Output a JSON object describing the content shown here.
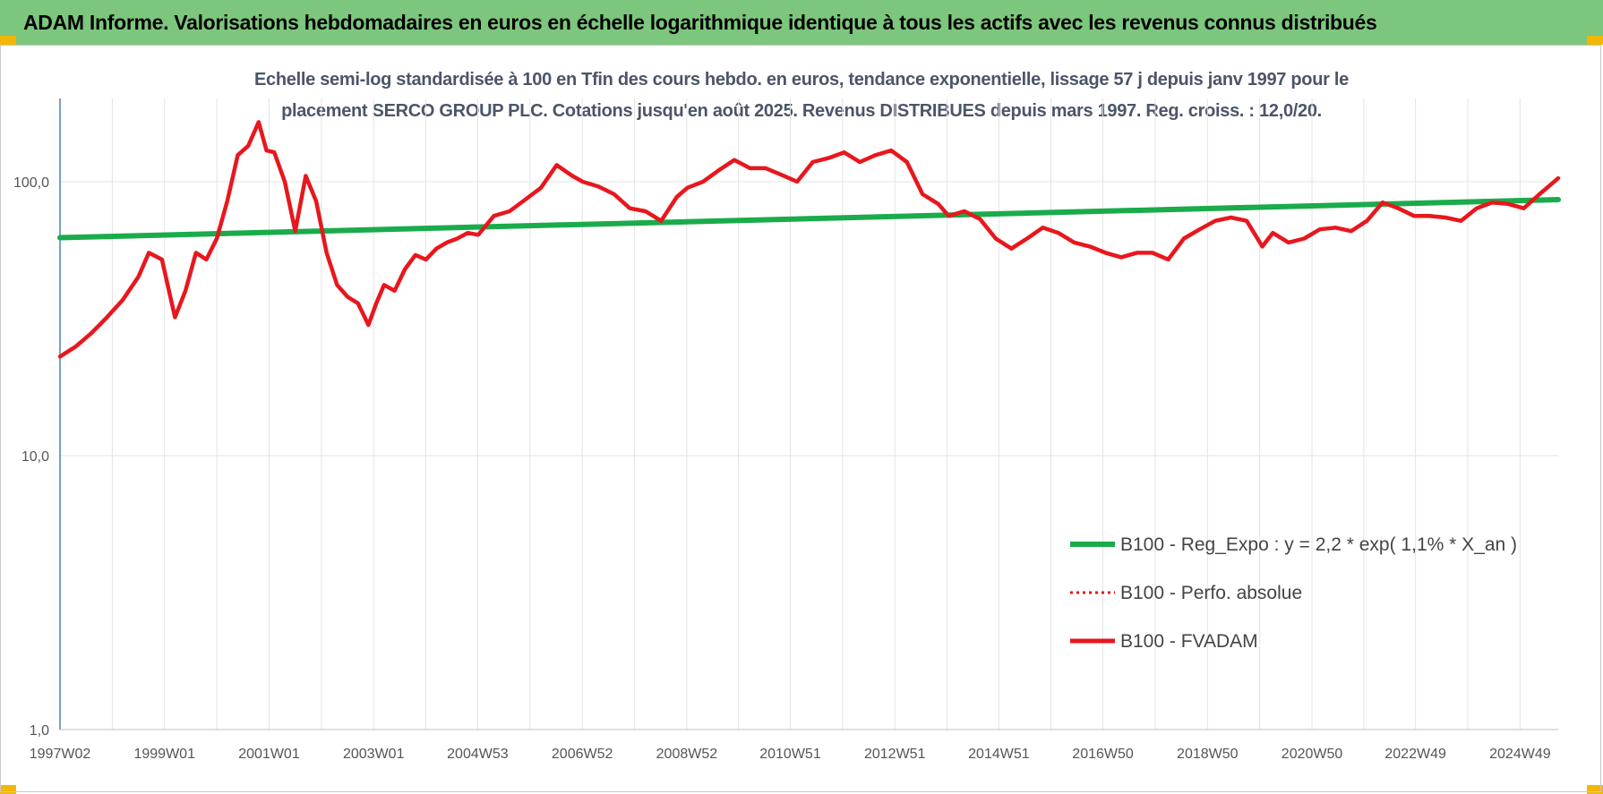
{
  "banner": {
    "title": "ADAM Informe. Valorisations hebdomadaires en euros en échelle logarithmique identique à tous les actifs avec les revenus connus distribués"
  },
  "colors": {
    "banner_bg": "#7dc67d",
    "corner_accent": "#f2b705",
    "trend_line": "#1aab4b",
    "fvadam_line": "#e8171d",
    "axis": "#4f81bd",
    "grid": "#e3e3e3"
  },
  "chart_data": {
    "type": "line",
    "subtitle_line1": "Echelle semi-log standardisée à 100 en Tfin des cours hebdo. en euros, tendance exponentielle, lissage 57 j depuis janv 1997 pour le",
    "subtitle_line2": "placement SERCO GROUP PLC. Cotations jusqu'en août 2025. Revenus DISTRIBUES depuis mars 1997. Reg. croiss. : 12,0/20.",
    "y_scale": "log",
    "ylim": [
      1,
      200
    ],
    "y_ticks": [
      1,
      10,
      100
    ],
    "y_tick_labels": [
      "1,0",
      "10,0",
      "100,0"
    ],
    "xlim": [
      1997.0,
      2025.66
    ],
    "x_ticks": [
      1997.0,
      1999.0,
      2001.0,
      2003.0,
      2004.99,
      2006.99,
      2008.99,
      2010.97,
      2012.97,
      2014.96,
      2016.95,
      2018.95,
      2020.95,
      2022.93,
      2024.93
    ],
    "x_tick_labels": [
      "1997W02",
      "1999W01",
      "2001W01",
      "2003W01",
      "2004W53",
      "2006W52",
      "2008W52",
      "2010W51",
      "2012W51",
      "2014W51",
      "2016W50",
      "2018W50",
      "2020W50",
      "2022W49",
      "2024W49"
    ],
    "grid": true,
    "legend_position": "bottom-right",
    "series": [
      {
        "name": "B100 - Reg_Expo : y = 2,2 * exp( 1,1% *  X_an )",
        "color": "#1aab4b",
        "style": "solid",
        "x": [
          1997.0,
          2025.66
        ],
        "values": [
          62.5,
          86.0
        ]
      },
      {
        "name": "B100 - Perfo. absolue",
        "color": "#e8171d",
        "style": "dotted",
        "x": [],
        "values": []
      },
      {
        "name": "B100 - FVADAM",
        "color": "#e8171d",
        "style": "solid",
        "x": [
          1997.0,
          1997.3,
          1997.6,
          1997.9,
          1998.2,
          1998.5,
          1998.7,
          1998.95,
          1999.2,
          1999.4,
          1999.6,
          1999.8,
          2000.0,
          2000.2,
          2000.4,
          2000.6,
          2000.8,
          2000.95,
          2001.1,
          2001.3,
          2001.5,
          2001.7,
          2001.9,
          2002.1,
          2002.3,
          2002.5,
          2002.7,
          2002.9,
          2003.05,
          2003.2,
          2003.4,
          2003.6,
          2003.8,
          2004.0,
          2004.2,
          2004.4,
          2004.6,
          2004.8,
          2005.0,
          2005.3,
          2005.6,
          2005.9,
          2006.2,
          2006.5,
          2006.8,
          2007.0,
          2007.3,
          2007.6,
          2007.9,
          2008.2,
          2008.5,
          2008.8,
          2009.0,
          2009.3,
          2009.6,
          2009.9,
          2010.2,
          2010.5,
          2010.8,
          2011.1,
          2011.4,
          2011.7,
          2012.0,
          2012.3,
          2012.6,
          2012.9,
          2013.2,
          2013.5,
          2013.8,
          2014.0,
          2014.3,
          2014.6,
          2014.9,
          2015.2,
          2015.5,
          2015.8,
          2016.1,
          2016.4,
          2016.7,
          2017.0,
          2017.3,
          2017.6,
          2017.9,
          2018.2,
          2018.5,
          2018.8,
          2019.1,
          2019.4,
          2019.7,
          2020.0,
          2020.2,
          2020.5,
          2020.8,
          2021.1,
          2021.4,
          2021.7,
          2022.0,
          2022.3,
          2022.6,
          2022.9,
          2023.2,
          2023.5,
          2023.8,
          2024.1,
          2024.4,
          2024.7,
          2025.0,
          2025.3,
          2025.66
        ],
        "values": [
          23,
          25,
          28,
          32,
          37,
          45,
          55,
          52,
          32,
          40,
          55,
          52,
          62,
          85,
          125,
          135,
          165,
          130,
          128,
          100,
          66,
          105,
          85,
          55,
          42,
          38,
          36,
          30,
          36,
          42,
          40,
          48,
          54,
          52,
          57,
          60,
          62,
          65,
          64,
          75,
          78,
          86,
          95,
          115,
          105,
          100,
          96,
          90,
          80,
          78,
          72,
          88,
          95,
          100,
          110,
          120,
          112,
          112,
          106,
          100,
          118,
          122,
          128,
          118,
          125,
          130,
          118,
          90,
          83,
          75,
          78,
          73,
          62,
          57,
          62,
          68,
          65,
          60,
          58,
          55,
          53,
          55,
          55,
          52,
          62,
          67,
          72,
          74,
          72,
          58,
          65,
          60,
          62,
          67,
          68,
          66,
          72,
          84,
          80,
          75,
          75,
          74,
          72,
          80,
          84,
          83,
          80,
          90,
          103
        ]
      }
    ]
  }
}
